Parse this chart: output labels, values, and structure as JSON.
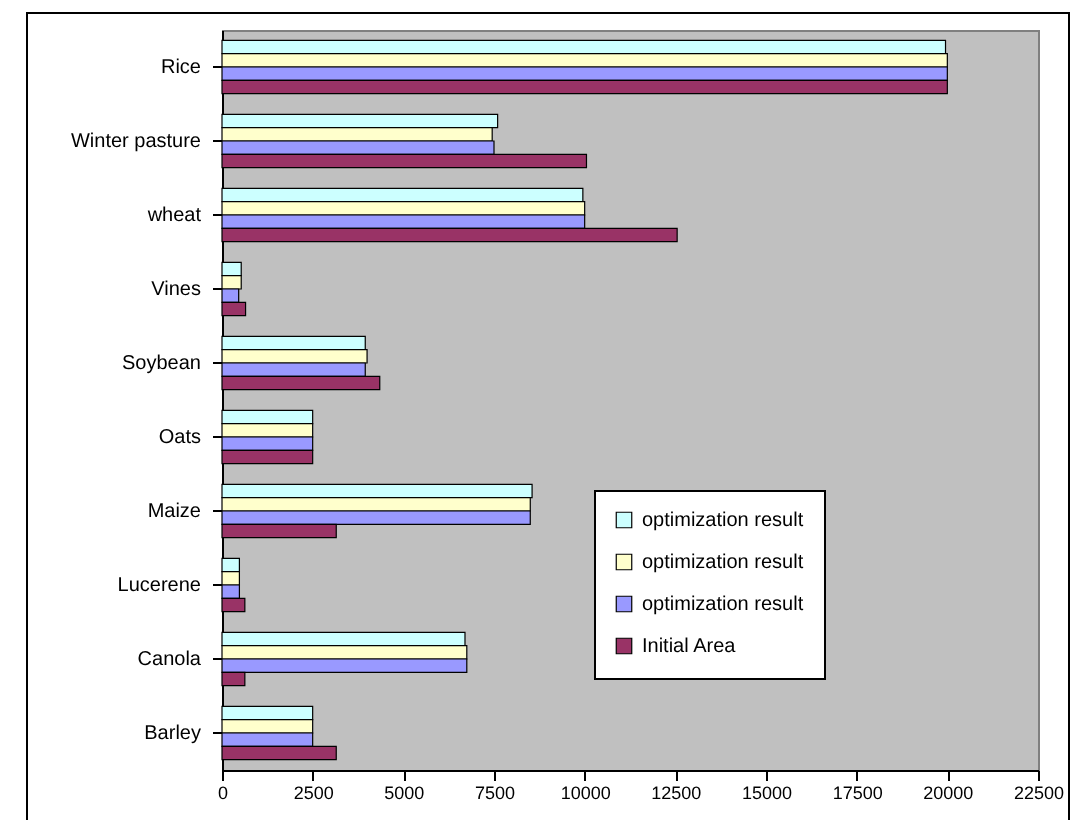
{
  "chart_data": {
    "type": "bar",
    "orientation": "horizontal",
    "categories": [
      "Rice",
      "Winter pasture",
      "wheat",
      "Vines",
      "Soybean",
      "Oats",
      "Maize",
      "Lucerene",
      "Canola",
      "Barley"
    ],
    "series": [
      {
        "name": "optimization result",
        "color": "#ccffff",
        "values": [
          19950,
          7600,
          9950,
          530,
          3950,
          2500,
          8550,
          480,
          6700,
          2500
        ]
      },
      {
        "name": "optimization result",
        "color": "#ffffcc",
        "values": [
          20000,
          7450,
          10000,
          530,
          4000,
          2500,
          8500,
          480,
          6750,
          2500
        ]
      },
      {
        "name": "optimization result",
        "color": "#9999ff",
        "values": [
          20000,
          7500,
          10000,
          460,
          3950,
          2500,
          8500,
          480,
          6750,
          2500
        ]
      },
      {
        "name": "Initial Area",
        "color": "#993366",
        "values": [
          20000,
          10050,
          12550,
          650,
          4350,
          2500,
          3150,
          630,
          630,
          3150
        ]
      }
    ],
    "xlim": [
      0,
      22500
    ],
    "xticks": [
      0,
      2500,
      5000,
      7500,
      10000,
      12500,
      15000,
      17500,
      20000,
      22500
    ],
    "grid": false,
    "legend": "bottom right"
  }
}
